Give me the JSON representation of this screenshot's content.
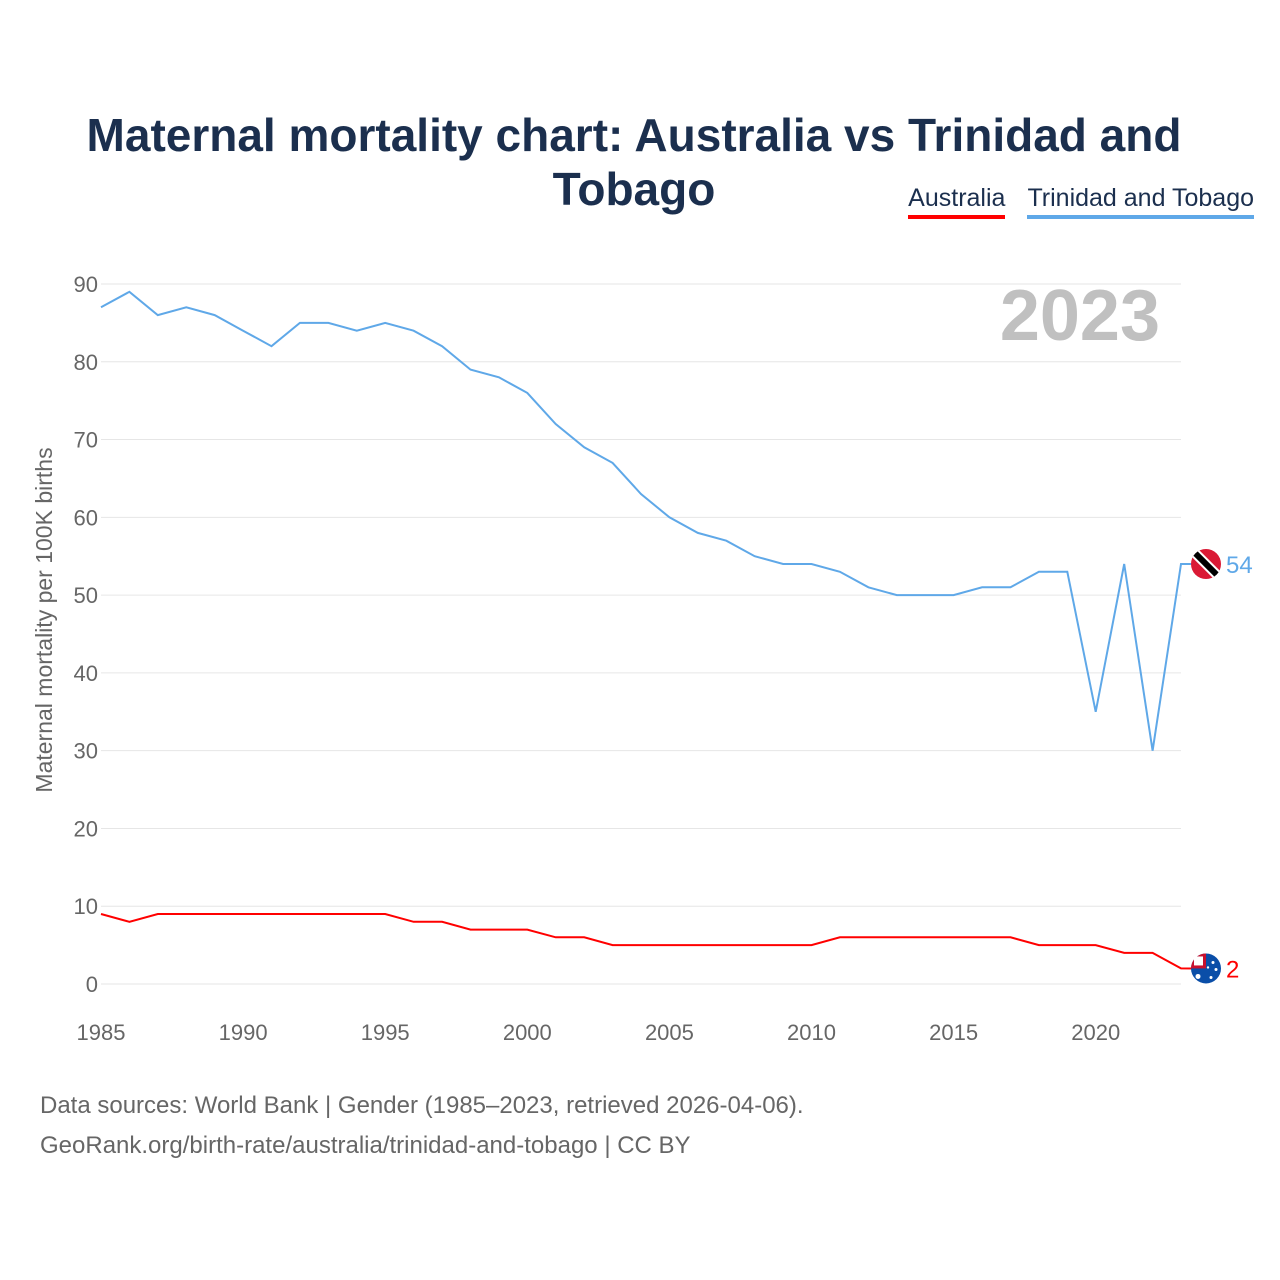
{
  "title": "Maternal mortality chart: Australia vs Trinidad and Tobago",
  "year_badge": "2023",
  "source_lines": [
    "Data sources: World Bank | Gender (1985–2023, retrieved 2026-04-06).",
    "GeoRank.org/birth-rate/australia/trinidad-and-tobago | CC BY"
  ],
  "chart_data": {
    "type": "line",
    "title": "Maternal mortality chart: Australia vs Trinidad and Tobago",
    "xlabel": "",
    "ylabel": "Maternal mortality per 100K births",
    "xlim": [
      1985,
      2023
    ],
    "ylim": [
      0,
      90
    ],
    "yticks": [
      0,
      10,
      20,
      30,
      40,
      50,
      60,
      70,
      80,
      90
    ],
    "xticks": [
      1985,
      1990,
      1995,
      2000,
      2005,
      2010,
      2015,
      2020
    ],
    "grid": true,
    "legend": "top-right",
    "x": [
      1985,
      1986,
      1987,
      1988,
      1989,
      1990,
      1991,
      1992,
      1993,
      1994,
      1995,
      1996,
      1997,
      1998,
      1999,
      2000,
      2001,
      2002,
      2003,
      2004,
      2005,
      2006,
      2007,
      2008,
      2009,
      2010,
      2011,
      2012,
      2013,
      2014,
      2015,
      2016,
      2017,
      2018,
      2019,
      2020,
      2021,
      2022,
      2023
    ],
    "series": [
      {
        "name": "Australia",
        "color": "#ff0000",
        "end_label": "2",
        "flag": "australia-flag",
        "values": [
          9,
          8,
          9,
          9,
          9,
          9,
          9,
          9,
          9,
          9,
          9,
          8,
          8,
          7,
          7,
          7,
          6,
          6,
          5,
          5,
          5,
          5,
          5,
          5,
          5,
          5,
          6,
          6,
          6,
          6,
          6,
          6,
          6,
          5,
          5,
          5,
          4,
          4,
          2
        ]
      },
      {
        "name": "Trinidad and Tobago",
        "color": "#5fa8e8",
        "end_label": "54",
        "flag": "trinidad-flag",
        "values": [
          87,
          89,
          86,
          87,
          86,
          84,
          82,
          85,
          85,
          84,
          85,
          84,
          82,
          79,
          78,
          76,
          72,
          69,
          67,
          63,
          60,
          58,
          57,
          55,
          54,
          54,
          53,
          51,
          50,
          50,
          50,
          51,
          51,
          53,
          53,
          35,
          54,
          30,
          54
        ]
      }
    ]
  }
}
